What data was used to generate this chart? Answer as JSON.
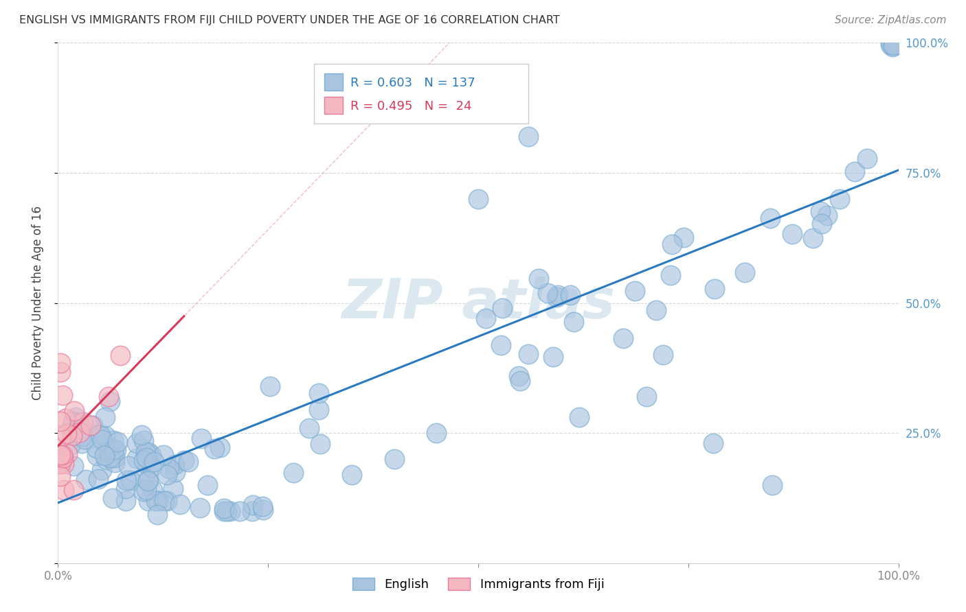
{
  "title": "ENGLISH VS IMMIGRANTS FROM FIJI CHILD POVERTY UNDER THE AGE OF 16 CORRELATION CHART",
  "source": "Source: ZipAtlas.com",
  "ylabel": "Child Poverty Under the Age of 16",
  "xlim": [
    0,
    1
  ],
  "ylim": [
    0,
    1
  ],
  "english_R": 0.603,
  "english_N": 137,
  "fiji_R": 0.495,
  "fiji_N": 24,
  "english_color": "#aac4e0",
  "english_edge_color": "#7bafd4",
  "fiji_color": "#f4b8c1",
  "fiji_edge_color": "#e8799a",
  "english_line_color": "#2979c0",
  "fiji_line_color": "#d63a5a",
  "fiji_dash_color": "#f4b8c1",
  "background_color": "#ffffff",
  "grid_color": "#cccccc",
  "watermark_color": "#dce8f0",
  "legend_border_color": "#cccccc",
  "tick_color": "#888888",
  "right_tick_color": "#5599cc",
  "title_color": "#333333",
  "source_color": "#888888"
}
